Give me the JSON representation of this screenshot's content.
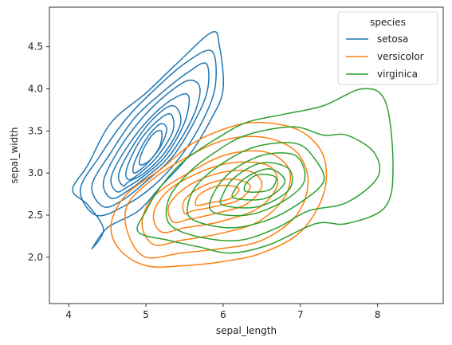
{
  "chart_data": {
    "type": "contour",
    "title": "",
    "xlabel": "sepal_length",
    "ylabel": "sepal_width",
    "xlim": [
      3.75,
      8.85
    ],
    "ylim": [
      1.45,
      4.97
    ],
    "xticks": [
      4,
      5,
      6,
      7,
      8
    ],
    "yticks": [
      2.0,
      2.5,
      3.0,
      3.5,
      4.0,
      4.5
    ],
    "xtick_labels": [
      "4",
      "5",
      "6",
      "7",
      "8"
    ],
    "ytick_labels": [
      "2.0",
      "2.5",
      "3.0",
      "3.5",
      "4.0",
      "4.5"
    ],
    "grid": false,
    "legend": {
      "title": "species",
      "position": "top-right",
      "entries": [
        "setosa",
        "versicolor",
        "virginica"
      ]
    },
    "series": [
      {
        "name": "setosa",
        "color": "#1f77b4",
        "center": [
          5.0,
          3.42
        ],
        "rings": [
          [
            [
              4.3,
              2.1
            ],
            [
              4.45,
              2.33
            ],
            [
              4.25,
              2.62
            ],
            [
              4.05,
              2.8
            ],
            [
              4.25,
              3.1
            ],
            [
              4.55,
              3.6
            ],
            [
              5.0,
              3.95
            ],
            [
              5.4,
              4.3
            ],
            [
              5.85,
              4.67
            ],
            [
              5.95,
              4.52
            ],
            [
              6.0,
              4.0
            ],
            [
              5.85,
              3.65
            ],
            [
              5.55,
              3.2
            ],
            [
              5.2,
              2.85
            ],
            [
              4.9,
              2.55
            ],
            [
              4.5,
              2.35
            ],
            [
              4.3,
              2.1
            ]
          ],
          [
            [
              4.35,
              2.5
            ],
            [
              4.15,
              2.8
            ],
            [
              4.4,
              3.2
            ],
            [
              4.75,
              3.65
            ],
            [
              5.1,
              3.98
            ],
            [
              5.5,
              4.3
            ],
            [
              5.85,
              4.45
            ],
            [
              5.9,
              4.05
            ],
            [
              5.75,
              3.65
            ],
            [
              5.45,
              3.2
            ],
            [
              5.1,
              2.85
            ],
            [
              4.7,
              2.6
            ],
            [
              4.35,
              2.5
            ]
          ],
          [
            [
              4.45,
              2.6
            ],
            [
              4.3,
              2.85
            ],
            [
              4.55,
              3.25
            ],
            [
              4.85,
              3.65
            ],
            [
              5.2,
              3.95
            ],
            [
              5.55,
              4.2
            ],
            [
              5.78,
              4.3
            ],
            [
              5.8,
              4.0
            ],
            [
              5.65,
              3.65
            ],
            [
              5.35,
              3.2
            ],
            [
              5.0,
              2.9
            ],
            [
              4.7,
              2.68
            ],
            [
              4.45,
              2.6
            ]
          ],
          [
            [
              4.55,
              2.7
            ],
            [
              4.45,
              2.9
            ],
            [
              4.65,
              3.28
            ],
            [
              4.95,
              3.65
            ],
            [
              5.25,
              3.92
            ],
            [
              5.55,
              4.1
            ],
            [
              5.7,
              4.0
            ],
            [
              5.6,
              3.65
            ],
            [
              5.3,
              3.2
            ],
            [
              5.0,
              2.95
            ],
            [
              4.75,
              2.78
            ],
            [
              4.55,
              2.7
            ]
          ],
          [
            [
              4.62,
              2.78
            ],
            [
              4.55,
              2.95
            ],
            [
              4.75,
              3.3
            ],
            [
              5.05,
              3.65
            ],
            [
              5.35,
              3.88
            ],
            [
              5.55,
              3.92
            ],
            [
              5.5,
              3.6
            ],
            [
              5.25,
              3.2
            ],
            [
              4.95,
              2.95
            ],
            [
              4.75,
              2.83
            ],
            [
              4.62,
              2.78
            ]
          ],
          [
            [
              4.7,
              2.85
            ],
            [
              4.65,
              3.0
            ],
            [
              4.85,
              3.35
            ],
            [
              5.1,
              3.65
            ],
            [
              5.35,
              3.8
            ],
            [
              5.45,
              3.6
            ],
            [
              5.25,
              3.25
            ],
            [
              4.98,
              3.0
            ],
            [
              4.78,
              2.9
            ],
            [
              4.7,
              2.85
            ]
          ],
          [
            [
              4.78,
              2.92
            ],
            [
              4.75,
              3.05
            ],
            [
              4.92,
              3.38
            ],
            [
              5.15,
              3.62
            ],
            [
              5.32,
              3.7
            ],
            [
              5.35,
              3.5
            ],
            [
              5.15,
              3.2
            ],
            [
              4.95,
              3.02
            ],
            [
              4.78,
              2.92
            ]
          ],
          [
            [
              4.85,
              3.0
            ],
            [
              4.85,
              3.12
            ],
            [
              5.0,
              3.4
            ],
            [
              5.18,
              3.58
            ],
            [
              5.27,
              3.52
            ],
            [
              5.18,
              3.3
            ],
            [
              5.0,
              3.1
            ],
            [
              4.85,
              3.0
            ]
          ],
          [
            [
              4.92,
              3.1
            ],
            [
              4.95,
              3.25
            ],
            [
              5.08,
              3.45
            ],
            [
              5.2,
              3.5
            ],
            [
              5.18,
              3.32
            ],
            [
              5.05,
              3.15
            ],
            [
              4.92,
              3.1
            ]
          ]
        ]
      },
      {
        "name": "versicolor",
        "color": "#ff7f0e",
        "center": [
          5.95,
          2.78
        ],
        "rings": [
          [
            [
              5.0,
              1.9
            ],
            [
              4.65,
              2.1
            ],
            [
              4.55,
              2.4
            ],
            [
              4.75,
              2.75
            ],
            [
              5.2,
              3.05
            ],
            [
              5.6,
              3.35
            ],
            [
              6.1,
              3.55
            ],
            [
              6.5,
              3.6
            ],
            [
              7.0,
              3.5
            ],
            [
              7.3,
              3.2
            ],
            [
              7.3,
              2.75
            ],
            [
              7.0,
              2.3
            ],
            [
              6.5,
              2.05
            ],
            [
              6.0,
              1.95
            ],
            [
              5.5,
              1.9
            ],
            [
              5.0,
              1.9
            ]
          ],
          [
            [
              5.0,
              2.0
            ],
            [
              4.78,
              2.25
            ],
            [
              4.75,
              2.6
            ],
            [
              5.05,
              2.9
            ],
            [
              5.55,
              3.2
            ],
            [
              6.05,
              3.4
            ],
            [
              6.55,
              3.42
            ],
            [
              6.95,
              3.25
            ],
            [
              7.1,
              2.9
            ],
            [
              6.95,
              2.5
            ],
            [
              6.5,
              2.2
            ],
            [
              5.95,
              2.1
            ],
            [
              5.45,
              2.05
            ],
            [
              5.0,
              2.0
            ]
          ],
          [
            [
              5.1,
              2.15
            ],
            [
              4.95,
              2.4
            ],
            [
              5.1,
              2.72
            ],
            [
              5.55,
              3.0
            ],
            [
              6.05,
              3.22
            ],
            [
              6.55,
              3.25
            ],
            [
              6.85,
              3.05
            ],
            [
              6.8,
              2.72
            ],
            [
              6.45,
              2.42
            ],
            [
              5.95,
              2.28
            ],
            [
              5.45,
              2.2
            ],
            [
              5.1,
              2.15
            ]
          ],
          [
            [
              5.2,
              2.3
            ],
            [
              5.1,
              2.52
            ],
            [
              5.3,
              2.8
            ],
            [
              5.75,
              3.03
            ],
            [
              6.2,
              3.13
            ],
            [
              6.6,
              3.08
            ],
            [
              6.7,
              2.85
            ],
            [
              6.45,
              2.58
            ],
            [
              5.95,
              2.42
            ],
            [
              5.5,
              2.35
            ],
            [
              5.2,
              2.3
            ]
          ],
          [
            [
              5.35,
              2.42
            ],
            [
              5.3,
              2.62
            ],
            [
              5.55,
              2.85
            ],
            [
              5.95,
              3.0
            ],
            [
              6.35,
              3.02
            ],
            [
              6.5,
              2.85
            ],
            [
              6.3,
              2.63
            ],
            [
              5.9,
              2.52
            ],
            [
              5.55,
              2.45
            ],
            [
              5.35,
              2.42
            ]
          ],
          [
            [
              5.5,
              2.52
            ],
            [
              5.5,
              2.68
            ],
            [
              5.75,
              2.85
            ],
            [
              6.1,
              2.93
            ],
            [
              6.35,
              2.85
            ],
            [
              6.2,
              2.68
            ],
            [
              5.88,
              2.6
            ],
            [
              5.6,
              2.55
            ],
            [
              5.5,
              2.52
            ]
          ],
          [
            [
              5.65,
              2.62
            ],
            [
              5.7,
              2.75
            ],
            [
              5.95,
              2.85
            ],
            [
              6.2,
              2.82
            ],
            [
              6.1,
              2.7
            ],
            [
              5.85,
              2.65
            ],
            [
              5.65,
              2.62
            ]
          ]
        ]
      },
      {
        "name": "virginica",
        "color": "#2ca02c",
        "center": [
          6.55,
          2.95
        ],
        "rings": [
          [
            [
              5.0,
              2.55
            ],
            [
              4.9,
              2.3
            ],
            [
              5.3,
              2.2
            ],
            [
              5.7,
              2.12
            ],
            [
              6.1,
              2.05
            ],
            [
              6.6,
              2.15
            ],
            [
              7.2,
              2.4
            ],
            [
              7.6,
              2.4
            ],
            [
              8.1,
              2.6
            ],
            [
              8.2,
              3.1
            ],
            [
              8.1,
              3.85
            ],
            [
              7.8,
              4.0
            ],
            [
              7.3,
              3.8
            ],
            [
              6.8,
              3.7
            ],
            [
              6.3,
              3.6
            ],
            [
              5.9,
              3.4
            ],
            [
              5.5,
              3.15
            ],
            [
              5.2,
              2.85
            ],
            [
              5.0,
              2.55
            ]
          ],
          [
            [
              5.3,
              2.4
            ],
            [
              5.65,
              2.25
            ],
            [
              6.2,
              2.2
            ],
            [
              6.7,
              2.35
            ],
            [
              7.1,
              2.55
            ],
            [
              7.6,
              2.65
            ],
            [
              8.0,
              2.95
            ],
            [
              7.95,
              3.25
            ],
            [
              7.6,
              3.45
            ],
            [
              7.3,
              3.45
            ],
            [
              6.9,
              3.55
            ],
            [
              6.3,
              3.45
            ],
            [
              5.9,
              3.25
            ],
            [
              5.55,
              3.0
            ],
            [
              5.3,
              2.7
            ],
            [
              5.3,
              2.4
            ]
          ],
          [
            [
              5.6,
              2.45
            ],
            [
              6.1,
              2.35
            ],
            [
              6.6,
              2.45
            ],
            [
              7.0,
              2.65
            ],
            [
              7.3,
              2.9
            ],
            [
              7.2,
              3.15
            ],
            [
              6.95,
              3.35
            ],
            [
              6.45,
              3.32
            ],
            [
              6.05,
              3.15
            ],
            [
              5.7,
              2.9
            ],
            [
              5.55,
              2.65
            ],
            [
              5.6,
              2.45
            ]
          ],
          [
            [
              5.85,
              2.55
            ],
            [
              6.3,
              2.5
            ],
            [
              6.75,
              2.65
            ],
            [
              7.05,
              2.9
            ],
            [
              6.95,
              3.2
            ],
            [
              6.55,
              3.22
            ],
            [
              6.15,
              3.05
            ],
            [
              5.9,
              2.8
            ],
            [
              5.85,
              2.55
            ]
          ],
          [
            [
              6.0,
              2.62
            ],
            [
              6.45,
              2.6
            ],
            [
              6.85,
              2.8
            ],
            [
              6.85,
              3.05
            ],
            [
              6.5,
              3.12
            ],
            [
              6.15,
              2.95
            ],
            [
              6.0,
              2.75
            ],
            [
              6.0,
              2.62
            ]
          ],
          [
            [
              6.15,
              2.7
            ],
            [
              6.55,
              2.7
            ],
            [
              6.8,
              2.9
            ],
            [
              6.6,
              3.05
            ],
            [
              6.3,
              2.95
            ],
            [
              6.15,
              2.8
            ],
            [
              6.15,
              2.7
            ]
          ],
          [
            [
              6.3,
              2.78
            ],
            [
              6.6,
              2.8
            ],
            [
              6.68,
              2.95
            ],
            [
              6.45,
              2.98
            ],
            [
              6.3,
              2.88
            ],
            [
              6.3,
              2.78
            ]
          ]
        ]
      }
    ]
  }
}
